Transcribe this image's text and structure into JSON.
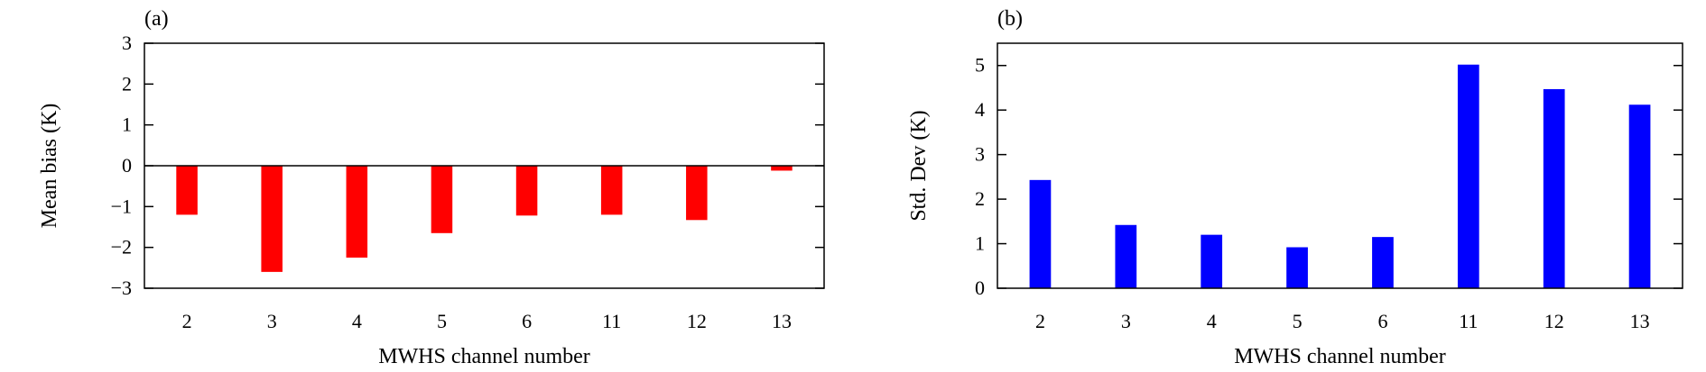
{
  "chart_data": [
    {
      "type": "bar",
      "panel_label": "(a)",
      "categories": [
        "2",
        "3",
        "4",
        "5",
        "6",
        "11",
        "12",
        "13"
      ],
      "values": [
        -1.2,
        -2.6,
        -2.25,
        -1.65,
        -1.22,
        -1.2,
        -1.33,
        -0.12
      ],
      "xlabel": "MWHS channel number",
      "ylabel": "Mean bias (K)",
      "ylim": [
        -3,
        3
      ],
      "yticks": [
        3,
        2,
        1,
        0,
        -1,
        -2,
        -3
      ],
      "ytick_labels": [
        "3",
        "2",
        "1",
        "0",
        "−1",
        "−2",
        "−3"
      ],
      "zero_line": true,
      "grid": false,
      "bar_color": "#ff0000"
    },
    {
      "type": "bar",
      "panel_label": "(b)",
      "categories": [
        "2",
        "3",
        "4",
        "5",
        "6",
        "11",
        "12",
        "13"
      ],
      "values": [
        2.43,
        1.42,
        1.2,
        0.92,
        1.15,
        5.02,
        4.47,
        4.12
      ],
      "xlabel": "MWHS channel number",
      "ylabel": "Std. Dev (K)",
      "ylim": [
        0,
        5.5
      ],
      "yticks": [
        0,
        1,
        2,
        3,
        4,
        5
      ],
      "ytick_labels": [
        "0",
        "1",
        "2",
        "3",
        "4",
        "5"
      ],
      "zero_line": false,
      "grid": false,
      "bar_color": "#0000ff"
    }
  ]
}
